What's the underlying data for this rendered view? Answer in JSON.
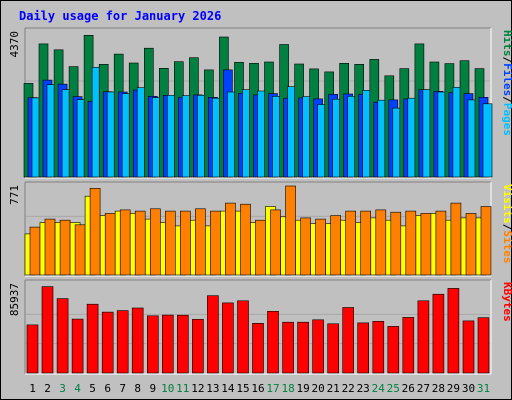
{
  "title": "Daily usage for January 2026",
  "colors": {
    "title": "#0000ff",
    "hits": "#008040",
    "files": "#0040ff",
    "pages": "#00c0ff",
    "visits": "#ffff00",
    "sites": "#ff8000",
    "kbytes": "#ff0000",
    "weekday_label": "#000000",
    "weekend_label": "#008040",
    "panel_bg": "#c0c0c0",
    "plot_bg": "#c0c0c0"
  },
  "legend": {
    "top": [
      {
        "text": "Hits",
        "color": "#008040"
      },
      {
        "text": "/",
        "color": "#000000"
      },
      {
        "text": "Files",
        "color": "#0040ff"
      },
      {
        "text": "/",
        "color": "#000000"
      },
      {
        "text": "Pages",
        "color": "#00c0ff"
      }
    ],
    "middle": [
      {
        "text": "Visits",
        "color": "#ffff00"
      },
      {
        "text": "/",
        "color": "#000000"
      },
      {
        "text": "Sites",
        "color": "#ff8000"
      }
    ],
    "bottom": [
      {
        "text": "KBytes",
        "color": "#ff0000"
      }
    ]
  },
  "chart_data": {
    "type": "bar",
    "title": "Daily usage for January 2026",
    "categories": [
      "1",
      "2",
      "3",
      "4",
      "5",
      "6",
      "7",
      "8",
      "9",
      "10",
      "11",
      "12",
      "13",
      "14",
      "15",
      "16",
      "17",
      "18",
      "19",
      "20",
      "21",
      "22",
      "23",
      "24",
      "25",
      "26",
      "27",
      "28",
      "29",
      "30",
      "31"
    ],
    "weekend_days": [
      "3",
      "4",
      "10",
      "11",
      "17",
      "18",
      "24",
      "25",
      "31"
    ],
    "panels": [
      {
        "id": "hits-files-pages",
        "ymax_label": "4370",
        "ylim": [
          0,
          4370
        ],
        "series": [
          {
            "name": "Hits",
            "color": "#008040",
            "values": [
              2840,
              4040,
              3860,
              3350,
              4300,
              3420,
              3730,
              3460,
              3910,
              3300,
              3500,
              3620,
              3250,
              4250,
              3480,
              3450,
              3490,
              4020,
              3430,
              3280,
              3190,
              3450,
              3420,
              3570,
              3070,
              3290,
              4040,
              3490,
              3440,
              3530,
              3290
            ]
          },
          {
            "name": "Files",
            "color": "#0040ff",
            "values": [
              2410,
              2940,
              2820,
              2440,
              2290,
              2590,
              2580,
              2640,
              2450,
              2480,
              2420,
              2490,
              2420,
              3250,
              2540,
              2490,
              2530,
              2390,
              2400,
              2370,
              2510,
              2520,
              2510,
              2270,
              2340,
              2370,
              2650,
              2600,
              2560,
              2530,
              2420
            ]
          },
          {
            "name": "Pages",
            "color": "#00c0ff",
            "values": [
              2400,
              2800,
              2650,
              2350,
              3330,
              2580,
              2530,
              2710,
              2410,
              2480,
              2470,
              2480,
              2390,
              2580,
              2650,
              2610,
              2450,
              2740,
              2440,
              2200,
              2360,
              2450,
              2630,
              2330,
              2090,
              2390,
              2650,
              2580,
              2720,
              2340,
              2220
            ]
          }
        ]
      },
      {
        "id": "visits-sites",
        "ymax_label": "771",
        "ylim": [
          0,
          771
        ],
        "series": [
          {
            "name": "Visits",
            "color": "#ffff00",
            "values": [
              360,
              460,
              460,
              460,
              690,
              520,
              560,
              540,
              490,
              460,
              430,
              480,
              430,
              560,
              560,
              460,
              600,
              510,
              480,
              450,
              450,
              480,
              460,
              500,
              480,
              430,
              520,
              540,
              480,
              500,
              500
            ]
          },
          {
            "name": "Sites",
            "color": "#ff8000",
            "values": [
              420,
              490,
              480,
              440,
              760,
              540,
              570,
              560,
              580,
              560,
              560,
              580,
              560,
              630,
              620,
              480,
              570,
              780,
              500,
              490,
              520,
              560,
              560,
              570,
              550,
              560,
              540,
              560,
              630,
              540,
              600
            ]
          }
        ]
      },
      {
        "id": "kbytes",
        "ymax_label": "85937",
        "ylim": [
          0,
          85937
        ],
        "series": [
          {
            "name": "KBytes",
            "color": "#ff0000",
            "values": [
              47000,
              84400,
              72700,
              52600,
              67200,
              59500,
              60900,
              63500,
              55900,
              56500,
              56400,
              52400,
              75500,
              68500,
              70500,
              48500,
              60300,
              49600,
              49600,
              52000,
              48000,
              64000,
              48900,
              50500,
              45500,
              54300,
              70500,
              77000,
              82600,
              50900,
              54000
            ]
          }
        ]
      }
    ]
  }
}
